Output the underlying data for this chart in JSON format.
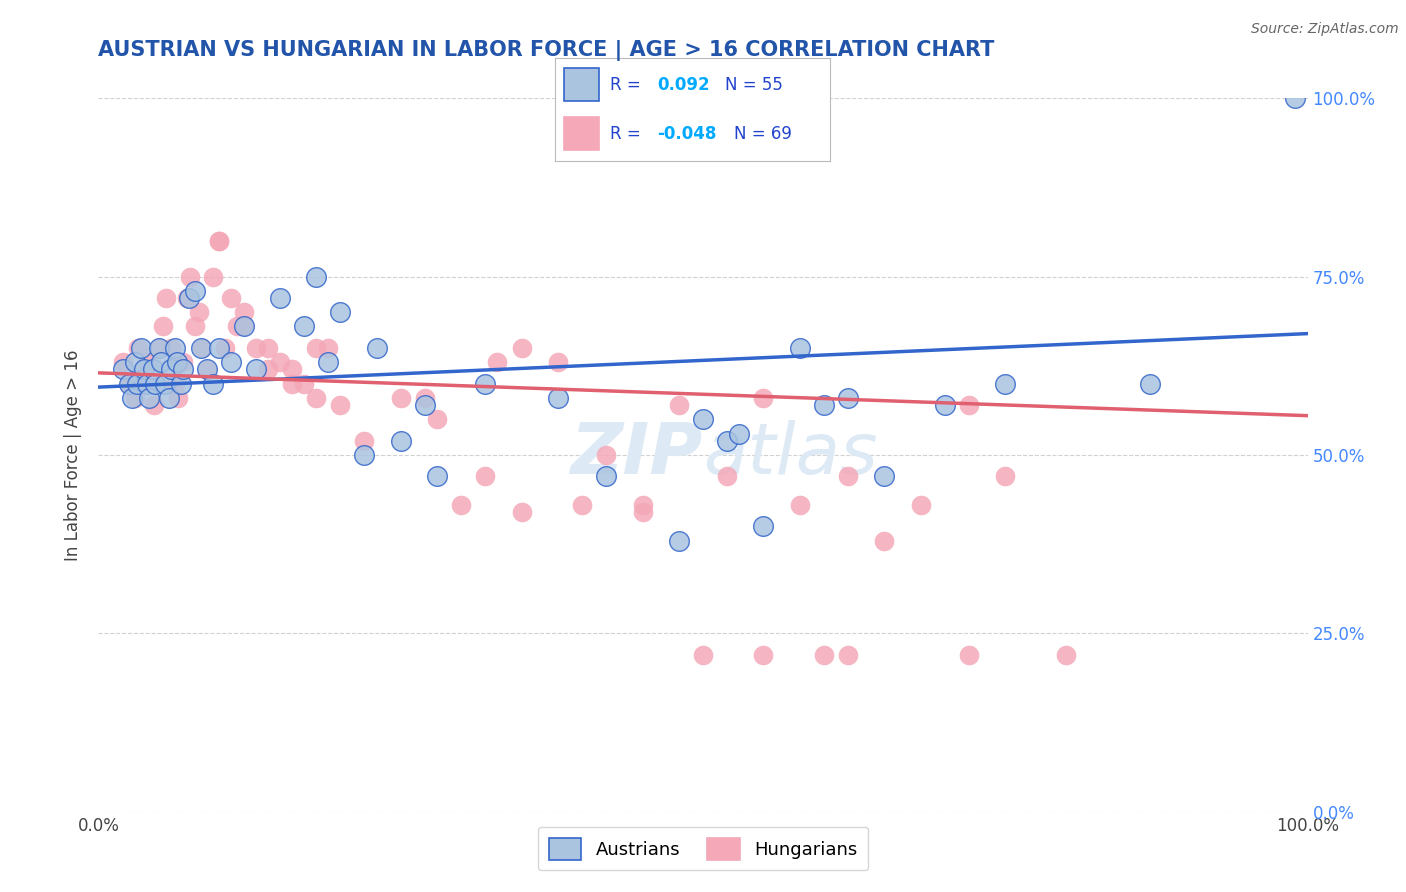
{
  "title": "AUSTRIAN VS HUNGARIAN IN LABOR FORCE | AGE > 16 CORRELATION CHART",
  "source_text": "Source: ZipAtlas.com",
  "ylabel": "In Labor Force | Age > 16",
  "r_austrian": 0.092,
  "n_austrian": 55,
  "r_hungarian": -0.048,
  "n_hungarian": 69,
  "color_austrian": "#aac4e0",
  "color_hungarian": "#f4a8b8",
  "line_color_austrian": "#3366cc",
  "line_color_hungarian": "#e06070",
  "background_color": "#ffffff",
  "grid_color": "#cccccc",
  "title_color": "#2255aa",
  "right_axis_color": "#4488ff",
  "legend_r_color": "#2244cc",
  "legend_val_color": "#00aaff",
  "watermark_color": "#ddeaf5",
  "xlim": [
    0.0,
    1.0
  ],
  "ylim": [
    0.0,
    1.0
  ],
  "austrian_x": [
    0.02,
    0.025,
    0.028,
    0.03,
    0.032,
    0.035,
    0.038,
    0.04,
    0.042,
    0.045,
    0.047,
    0.05,
    0.052,
    0.055,
    0.058,
    0.06,
    0.063,
    0.065,
    0.068,
    0.07,
    0.075,
    0.08,
    0.085,
    0.09,
    0.095,
    0.1,
    0.11,
    0.12,
    0.13,
    0.15,
    0.17,
    0.19,
    0.22,
    0.25,
    0.28,
    0.32,
    0.38,
    0.42,
    0.48,
    0.52,
    0.55,
    0.6,
    0.65,
    0.5,
    0.53,
    0.58,
    0.62,
    0.7,
    0.75,
    0.18,
    0.2,
    0.23,
    0.27,
    0.87,
    0.99
  ],
  "austrian_y": [
    0.62,
    0.6,
    0.58,
    0.63,
    0.6,
    0.65,
    0.62,
    0.6,
    0.58,
    0.62,
    0.6,
    0.65,
    0.63,
    0.6,
    0.58,
    0.62,
    0.65,
    0.63,
    0.6,
    0.62,
    0.72,
    0.73,
    0.65,
    0.62,
    0.6,
    0.65,
    0.63,
    0.68,
    0.62,
    0.72,
    0.68,
    0.63,
    0.5,
    0.52,
    0.47,
    0.6,
    0.58,
    0.47,
    0.38,
    0.52,
    0.4,
    0.57,
    0.47,
    0.55,
    0.53,
    0.65,
    0.58,
    0.57,
    0.6,
    0.75,
    0.7,
    0.65,
    0.57,
    0.6,
    1.0
  ],
  "hungarian_x": [
    0.02,
    0.025,
    0.03,
    0.033,
    0.036,
    0.04,
    0.043,
    0.046,
    0.05,
    0.053,
    0.056,
    0.06,
    0.063,
    0.066,
    0.07,
    0.073,
    0.076,
    0.08,
    0.083,
    0.086,
    0.09,
    0.095,
    0.1,
    0.105,
    0.11,
    0.115,
    0.12,
    0.13,
    0.14,
    0.15,
    0.16,
    0.17,
    0.18,
    0.19,
    0.2,
    0.22,
    0.25,
    0.28,
    0.32,
    0.35,
    0.38,
    0.42,
    0.45,
    0.48,
    0.52,
    0.55,
    0.58,
    0.62,
    0.65,
    0.68,
    0.72,
    0.75,
    0.8,
    0.55,
    0.6,
    0.62,
    0.72,
    0.3,
    0.35,
    0.4,
    0.45,
    0.5,
    0.27,
    0.33,
    0.1,
    0.12,
    0.14,
    0.16,
    0.18
  ],
  "hungarian_y": [
    0.63,
    0.6,
    0.58,
    0.65,
    0.6,
    0.63,
    0.6,
    0.57,
    0.65,
    0.68,
    0.72,
    0.65,
    0.6,
    0.58,
    0.63,
    0.72,
    0.75,
    0.68,
    0.7,
    0.65,
    0.62,
    0.75,
    0.8,
    0.65,
    0.72,
    0.68,
    0.7,
    0.65,
    0.62,
    0.63,
    0.6,
    0.6,
    0.58,
    0.65,
    0.57,
    0.52,
    0.58,
    0.55,
    0.47,
    0.65,
    0.63,
    0.5,
    0.43,
    0.57,
    0.47,
    0.58,
    0.43,
    0.47,
    0.38,
    0.43,
    0.57,
    0.47,
    0.22,
    0.22,
    0.22,
    0.22,
    0.22,
    0.43,
    0.42,
    0.43,
    0.42,
    0.22,
    0.58,
    0.63,
    0.8,
    0.68,
    0.65,
    0.62,
    0.65
  ],
  "trendline_austrian_start_y": 0.595,
  "trendline_austrian_end_y": 0.67,
  "trendline_hungarian_start_y": 0.615,
  "trendline_hungarian_end_y": 0.555
}
